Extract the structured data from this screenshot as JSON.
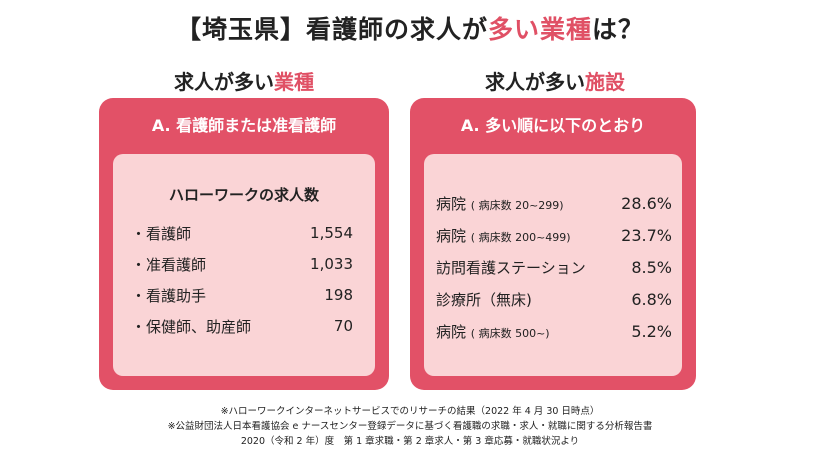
{
  "title": {
    "prefix": "【埼玉県】看護師の求人が",
    "highlight": "多い業種",
    "suffix": "は？"
  },
  "colors": {
    "accent": "#e05065",
    "card": "#e25167",
    "panel": "#fad4d6"
  },
  "left": {
    "heading_prefix": "求人が多い",
    "heading_highlight": "業種",
    "card_title": "A. 看護師または准看護師",
    "panel_title": "ハローワークの求人数",
    "items": [
      {
        "label": "・看護師",
        "value": "1,554"
      },
      {
        "label": "・准看護師",
        "value": "1,033"
      },
      {
        "label": "・看護助手",
        "value": "198"
      },
      {
        "label": "・保健師、助産師",
        "value": "70"
      }
    ]
  },
  "right": {
    "heading_prefix": "求人が多い",
    "heading_highlight": "施設",
    "card_title": "A. 多い順に以下のとおり",
    "items": [
      {
        "label": "病院",
        "detail": "( 病床数 20~299)",
        "value": "28.6%"
      },
      {
        "label": "病院",
        "detail": "( 病床数 200~499)",
        "value": "23.7%"
      },
      {
        "label": "訪問看護ステーション",
        "detail": "",
        "value": "8.5%"
      },
      {
        "label": "診療所（無床)",
        "detail": "",
        "value": "6.8%"
      },
      {
        "label": "病院",
        "detail": "( 病床数 500~)",
        "value": "5.2%"
      }
    ]
  },
  "notes": [
    "※ハローワークインターネットサービスでのリサーチの結果（2022 年 4 月 30 日時点）",
    "※公益財団法人日本看護協会 e ナースセンター登録データに基づく看護職の求職・求人・就職に関する分析報告書",
    "2020（令和 2 年）度　第 1 章求職・第 2 章求人・第 3 章応募・就職状況より"
  ]
}
